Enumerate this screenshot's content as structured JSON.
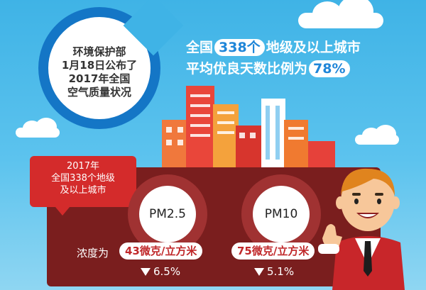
{
  "circle": {
    "lines": [
      "环境保护部",
      "1月18日公布了",
      "2017年全国",
      "空气质量状况"
    ]
  },
  "headline": {
    "row1_prefix": "全国",
    "row1_highlight": "338个",
    "row1_suffix": "地级及以上城市",
    "row2_prefix": "平均优良天数比例为",
    "row2_highlight": "78%"
  },
  "callout": {
    "lines": [
      "2017年",
      "全国338个地级",
      "及以上城市"
    ]
  },
  "pm25": {
    "label": "PM2.5",
    "concentration": "43微克/立方米",
    "change": "6.5%"
  },
  "pm10": {
    "label": "PM10",
    "concentration": "75微克/立方米",
    "change": "5.1%"
  },
  "concentration_label": "浓度为",
  "colors": {
    "sky": "#3fb3e6",
    "ring_blue": "#1476c6",
    "band_dark": "#7a1e1e",
    "accent_red": "#d42b2b",
    "highlight_blue": "#1f86d8"
  },
  "icons": [
    "cloud-icon",
    "building-icon",
    "down-triangle-icon",
    "mascot-thumbs-up-icon"
  ]
}
